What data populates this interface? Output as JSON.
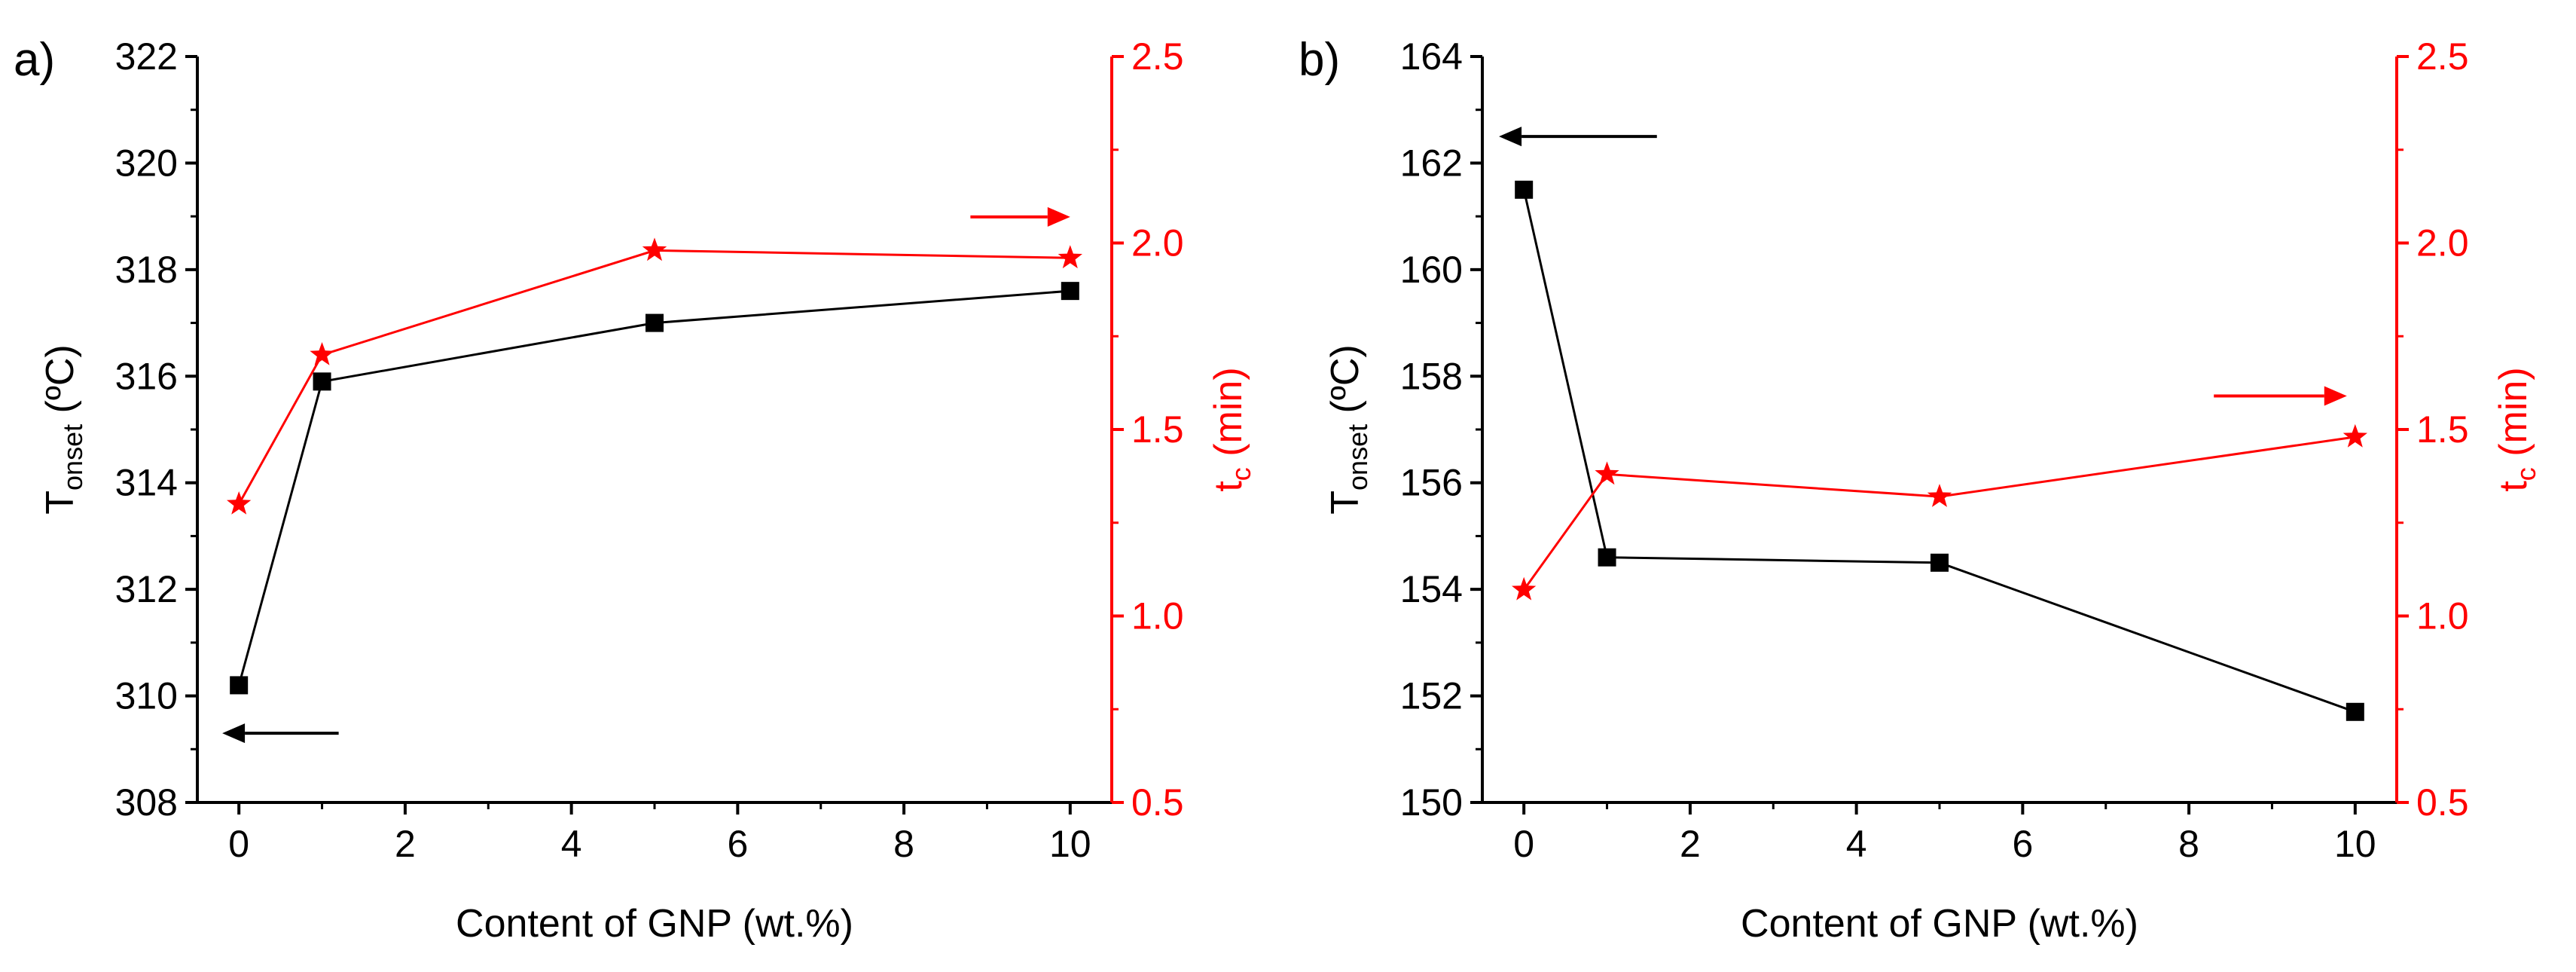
{
  "figure": {
    "colors": {
      "black_series": "#000000",
      "red_series": "#ff0000",
      "axis": "#000000",
      "right_axis": "#ff0000"
    }
  },
  "chart_data": [
    {
      "type": "line",
      "panel_label": "a)",
      "xlabel": "Content of GNP (wt.%)",
      "ylabel_left": {
        "main": "T",
        "sub": "onset",
        "rest": " (ºC)"
      },
      "ylabel_right": {
        "main": "t",
        "sub": "c",
        "rest": " (min)"
      },
      "xlim": [
        -0.5,
        10.5
      ],
      "ylim_left": [
        308,
        322
      ],
      "ylim_right": [
        0.5,
        2.5
      ],
      "xticks": [
        "0",
        "2",
        "4",
        "6",
        "8",
        "10"
      ],
      "yticks_left": [
        "308",
        "310",
        "312",
        "314",
        "316",
        "318",
        "320",
        "322"
      ],
      "yticks_right": [
        "0.5",
        "1.0",
        "1.5",
        "2.0",
        "2.5"
      ],
      "series": [
        {
          "name": "T_onset",
          "axis": "left",
          "marker": "square",
          "color": "#000000",
          "x": [
            0,
            1,
            5,
            10
          ],
          "y": [
            310.2,
            315.9,
            317.0,
            317.6
          ]
        },
        {
          "name": "t_c",
          "axis": "right",
          "marker": "star",
          "color": "#ff0000",
          "x": [
            0,
            1,
            5,
            10
          ],
          "y": [
            1.3,
            1.7,
            1.98,
            1.96
          ]
        }
      ],
      "annotations": [
        {
          "type": "arrow",
          "direction": "left",
          "color": "#000000",
          "axis": "left",
          "x_from": 1.2,
          "x_to": -0.2,
          "y": 309.3,
          "meaning": "black series uses left axis"
        },
        {
          "type": "arrow",
          "direction": "right",
          "color": "#ff0000",
          "axis": "right",
          "x_from": 8.8,
          "x_to": 10.0,
          "y": 2.07,
          "meaning": "red series uses right axis"
        }
      ]
    },
    {
      "type": "line",
      "panel_label": "b)",
      "xlabel": "Content of GNP (wt.%)",
      "ylabel_left": {
        "main": "T",
        "sub": "onset",
        "rest": " (ºC)"
      },
      "ylabel_right": {
        "main": "t",
        "sub": "c",
        "rest": " (min)"
      },
      "xlim": [
        -0.5,
        10.5
      ],
      "ylim_left": [
        150,
        164
      ],
      "ylim_right": [
        0.5,
        2.5
      ],
      "xticks": [
        "0",
        "2",
        "4",
        "6",
        "8",
        "10"
      ],
      "yticks_left": [
        "150",
        "152",
        "154",
        "156",
        "158",
        "160",
        "162",
        "164"
      ],
      "yticks_right": [
        "0.5",
        "1.0",
        "1.5",
        "2.0",
        "2.5"
      ],
      "series": [
        {
          "name": "T_onset",
          "axis": "left",
          "marker": "square",
          "color": "#000000",
          "x": [
            0,
            1,
            5,
            10
          ],
          "y": [
            161.5,
            154.6,
            154.5,
            151.7
          ]
        },
        {
          "name": "t_c",
          "axis": "right",
          "marker": "star",
          "color": "#ff0000",
          "x": [
            0,
            1,
            5,
            10
          ],
          "y": [
            1.07,
            1.38,
            1.32,
            1.48
          ]
        }
      ],
      "annotations": [
        {
          "type": "arrow",
          "direction": "left",
          "color": "#000000",
          "axis": "left",
          "x_from": 1.6,
          "x_to": -0.3,
          "y": 162.5,
          "meaning": "black series uses left axis"
        },
        {
          "type": "arrow",
          "direction": "right",
          "color": "#ff0000",
          "axis": "right",
          "x_from": 8.3,
          "x_to": 9.9,
          "y": 1.59,
          "meaning": "red series uses right axis"
        }
      ]
    }
  ]
}
